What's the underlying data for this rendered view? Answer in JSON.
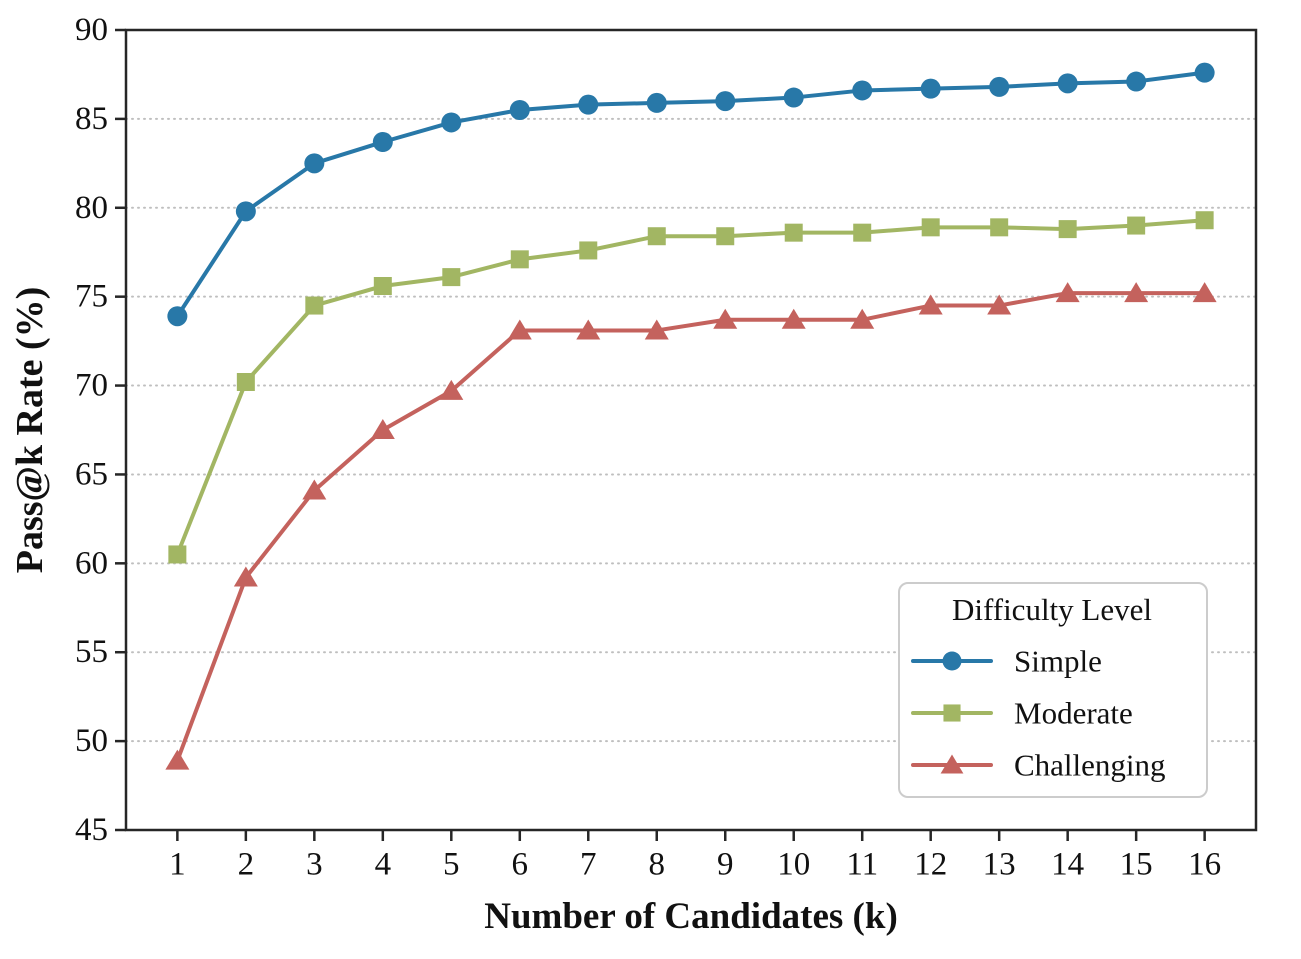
{
  "chart_data": {
    "type": "line",
    "title": "",
    "xlabel": "Number of Candidates (k)",
    "ylabel": "Pass@k Rate (%)",
    "x": [
      1,
      2,
      3,
      4,
      5,
      6,
      7,
      8,
      9,
      10,
      11,
      12,
      13,
      14,
      15,
      16
    ],
    "xticks": [
      1,
      2,
      3,
      4,
      5,
      6,
      7,
      8,
      9,
      10,
      11,
      12,
      13,
      14,
      15,
      16
    ],
    "yticks": [
      45,
      50,
      55,
      60,
      65,
      70,
      75,
      80,
      85,
      90
    ],
    "xlim": [
      0.25,
      16.75
    ],
    "ylim": [
      45,
      90
    ],
    "grid": "horizontal",
    "grid_style": "dotted",
    "legend": {
      "title": "Difficulty Level",
      "position": "lower right"
    },
    "colors": {
      "axis": "#262626",
      "grid": "#bfbfbf",
      "background": "#ffffff",
      "legend_border": "#cccccc"
    },
    "series": [
      {
        "name": "Simple",
        "marker": "circle",
        "color": "#2878a8",
        "values": [
          73.9,
          79.8,
          82.5,
          83.7,
          84.8,
          85.5,
          85.8,
          85.9,
          86.0,
          86.2,
          86.6,
          86.7,
          86.8,
          87.0,
          87.1,
          87.6
        ]
      },
      {
        "name": "Moderate",
        "marker": "square",
        "color": "#a2b663",
        "values": [
          60.5,
          70.2,
          74.5,
          75.6,
          76.1,
          77.1,
          77.6,
          78.4,
          78.4,
          78.6,
          78.6,
          78.9,
          78.9,
          78.8,
          79.0,
          79.3
        ]
      },
      {
        "name": "Challenging",
        "marker": "triangle",
        "color": "#c4625d",
        "values": [
          48.9,
          59.2,
          64.1,
          67.5,
          69.7,
          73.1,
          73.1,
          73.1,
          73.7,
          73.7,
          73.7,
          74.5,
          74.5,
          75.2,
          75.2,
          75.2
        ]
      }
    ]
  }
}
